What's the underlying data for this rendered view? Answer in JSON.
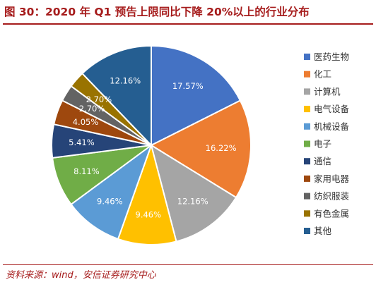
{
  "title": "图 30：2020 年 Q1 预告上限同比下降 20%以上的行业分布",
  "source": "资料来源：wind，安信证券研究中心",
  "colors": {
    "brand_red": "#a61c1c"
  },
  "chart_data": {
    "type": "pie",
    "legend_position": "right",
    "categories": [
      "医药生物",
      "化工",
      "计算机",
      "电气设备",
      "机械设备",
      "电子",
      "通信",
      "家用电器",
      "纺织服装",
      "有色金属",
      "其他"
    ],
    "values": [
      17.57,
      16.22,
      12.16,
      9.46,
      9.46,
      8.11,
      5.41,
      4.05,
      2.7,
      2.7,
      12.16
    ],
    "labels": [
      "17.57%",
      "16.22%",
      "12.16%",
      "9.46%",
      "9.46%",
      "8.11%",
      "5.41%",
      "4.05%",
      "2.70%",
      "2.70%",
      "12.16%"
    ],
    "colors": [
      "#4472c4",
      "#ed7d31",
      "#a5a5a5",
      "#ffc000",
      "#5b9bd5",
      "#70ad47",
      "#264478",
      "#9e480e",
      "#636363",
      "#997300",
      "#255e91"
    ]
  }
}
